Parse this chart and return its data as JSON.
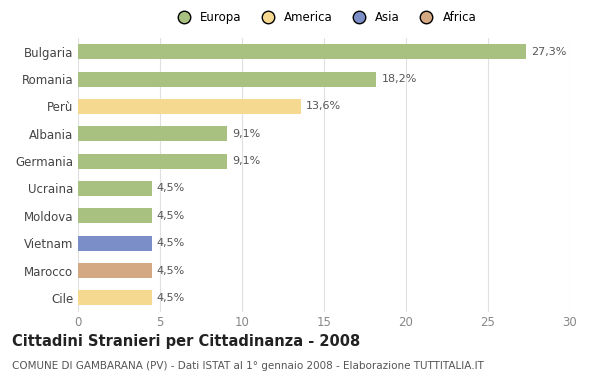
{
  "countries": [
    "Bulgaria",
    "Romania",
    "Perù",
    "Albania",
    "Germania",
    "Ucraina",
    "Moldova",
    "Vietnam",
    "Marocco",
    "Cile"
  ],
  "values": [
    27.3,
    18.2,
    13.6,
    9.1,
    9.1,
    4.5,
    4.5,
    4.5,
    4.5,
    4.5
  ],
  "labels": [
    "27,3%",
    "18,2%",
    "13,6%",
    "9,1%",
    "9,1%",
    "4,5%",
    "4,5%",
    "4,5%",
    "4,5%",
    "4,5%"
  ],
  "colors": [
    "#a8c080",
    "#a8c080",
    "#f5d990",
    "#a8c080",
    "#a8c080",
    "#a8c080",
    "#a8c080",
    "#7b8ec8",
    "#d4a882",
    "#f5d990"
  ],
  "legend_labels": [
    "Europa",
    "America",
    "Asia",
    "Africa"
  ],
  "legend_colors": [
    "#a8c080",
    "#f5d990",
    "#7b8ec8",
    "#d4a882"
  ],
  "title": "Cittadini Stranieri per Cittadinanza - 2008",
  "subtitle": "COMUNE DI GAMBARANA (PV) - Dati ISTAT al 1° gennaio 2008 - Elaborazione TUTTITALIA.IT",
  "xlim": [
    0,
    30
  ],
  "xticks": [
    0,
    5,
    10,
    15,
    20,
    25,
    30
  ],
  "background_color": "#ffffff",
  "grid_color": "#e0e0e0",
  "label_fontsize": 8.0,
  "title_fontsize": 10.5,
  "subtitle_fontsize": 7.5,
  "bar_height": 0.55,
  "ytick_fontsize": 8.5,
  "xtick_fontsize": 8.5
}
